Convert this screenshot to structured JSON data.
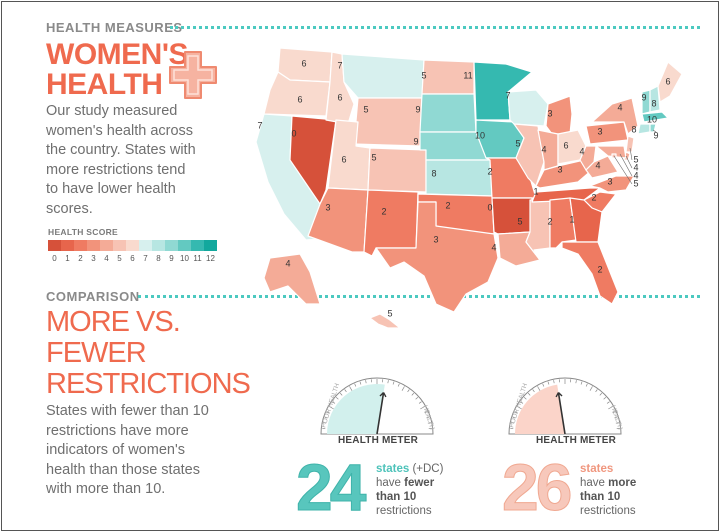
{
  "header": {
    "kicker": "HEALTH MEASURES",
    "title_line1": "WOMEN'S",
    "title_line2": "HEALTH"
  },
  "intro": {
    "lines": [
      "Our study measured",
      "women's health across",
      "the country.  States with",
      "more restrictions tend",
      "to have lower health",
      "scores."
    ]
  },
  "legend": {
    "title": "HEALTH SCORE",
    "scale": [
      0,
      1,
      2,
      3,
      4,
      5,
      6,
      7,
      8,
      9,
      10,
      11,
      12
    ],
    "colors": [
      "#d6513a",
      "#e7654c",
      "#ef7b62",
      "#f2937b",
      "#f4ab97",
      "#f7c3b4",
      "#f9dace",
      "#d7f0ee",
      "#b7e6e2",
      "#90d9d3",
      "#63c9c1",
      "#35b9b0",
      "#12a89d"
    ]
  },
  "comparison": {
    "kicker": "COMPARISON",
    "title_lines": [
      "MORE VS.",
      "FEWER",
      "RESTRICTIONS"
    ],
    "body_lines": [
      "States with fewer than 10",
      "restrictions have more",
      "indicators of women's",
      "health than those states",
      "with more than 10."
    ]
  },
  "meters": [
    {
      "label": "HEALTH METER",
      "left_label": "POOR HEALTH",
      "right_label": "HEALTH",
      "value": 0.55,
      "fill": "#d2f0ed",
      "stat_number": "24",
      "stat_color": "#58c6bd",
      "stat_head": "states",
      "stat_head_extra": " (+DC)",
      "stat_line2_a": "have ",
      "stat_line2_b": "fewer",
      "stat_line3": "than 10",
      "stat_line4": "restrictions"
    },
    {
      "label": "HEALTH METER",
      "left_label": "POOR HEALTH",
      "right_label": "HEALTH",
      "value": 0.45,
      "fill": "#fbd4c9",
      "stat_number": "26",
      "stat_color": "#f7c8bb",
      "stat_head": "states",
      "stat_head_extra": "",
      "stat_line2_a": "have ",
      "stat_line2_b": "more",
      "stat_line3": "than 10",
      "stat_line4": "restrictions"
    }
  ],
  "map": {
    "states": [
      {
        "id": "WA",
        "score": 6
      },
      {
        "id": "OR",
        "score": 6
      },
      {
        "id": "CA",
        "score": 7
      },
      {
        "id": "NV",
        "score": 0
      },
      {
        "id": "ID",
        "score": 6
      },
      {
        "id": "MT",
        "score": 7
      },
      {
        "id": "WY",
        "score": 5
      },
      {
        "id": "UT",
        "score": 6
      },
      {
        "id": "AZ",
        "score": 3
      },
      {
        "id": "CO",
        "score": 5
      },
      {
        "id": "NM",
        "score": 2
      },
      {
        "id": "ND",
        "score": 5
      },
      {
        "id": "SD",
        "score": 9
      },
      {
        "id": "NE",
        "score": 9
      },
      {
        "id": "KS",
        "score": 8
      },
      {
        "id": "OK",
        "score": 2
      },
      {
        "id": "TX",
        "score": 3
      },
      {
        "id": "MN",
        "score": 11
      },
      {
        "id": "IA",
        "score": 10
      },
      {
        "id": "MO",
        "score": 2
      },
      {
        "id": "AR",
        "score": 0
      },
      {
        "id": "LA",
        "score": 4
      },
      {
        "id": "WI",
        "score": 7
      },
      {
        "id": "IL",
        "score": 5
      },
      {
        "id": "MS",
        "score": 5
      },
      {
        "id": "MI",
        "score": 3
      },
      {
        "id": "IN",
        "score": 4
      },
      {
        "id": "KY",
        "score": 3
      },
      {
        "id": "TN",
        "score": 1
      },
      {
        "id": "AL",
        "score": 2
      },
      {
        "id": "OH",
        "score": 6
      },
      {
        "id": "WV",
        "score": 4
      },
      {
        "id": "VA",
        "score": 4
      },
      {
        "id": "NC",
        "score": 3
      },
      {
        "id": "SC",
        "score": 2
      },
      {
        "id": "GA",
        "score": 1
      },
      {
        "id": "FL",
        "score": 2
      },
      {
        "id": "PA",
        "score": 3
      },
      {
        "id": "NY",
        "score": 4
      },
      {
        "id": "VT",
        "score": 9
      },
      {
        "id": "NH",
        "score": 8
      },
      {
        "id": "ME",
        "score": 6
      },
      {
        "id": "MA",
        "score": 10
      },
      {
        "id": "CT",
        "score": 8
      },
      {
        "id": "RI",
        "score": 9
      },
      {
        "id": "NJ",
        "score": 5
      },
      {
        "id": "DE",
        "score": 4
      },
      {
        "id": "MD",
        "score": 4
      },
      {
        "id": "DC",
        "score": 5
      },
      {
        "id": "AK",
        "score": 4
      },
      {
        "id": "HI",
        "score": 5
      }
    ]
  }
}
